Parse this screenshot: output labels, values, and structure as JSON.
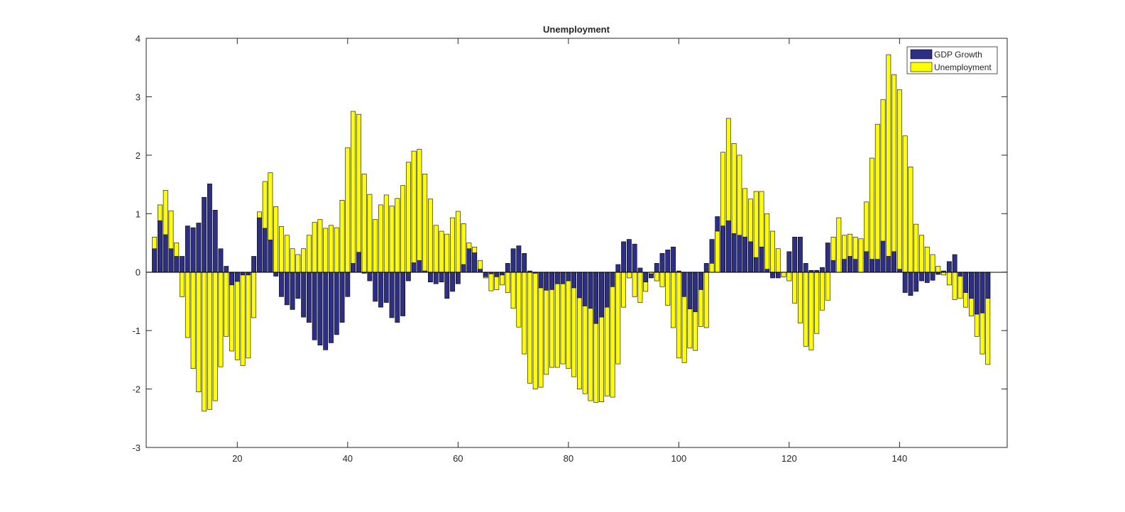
{
  "chart_data": {
    "type": "bar",
    "title": "Unemployment",
    "xlabel": "",
    "ylabel": "",
    "xlim": [
      3.5,
      159.5
    ],
    "ylim": [
      -3,
      4
    ],
    "xticks": [
      20,
      40,
      60,
      80,
      100,
      120,
      140
    ],
    "yticks": [
      -3,
      -2,
      -1,
      0,
      1,
      2,
      3,
      4
    ],
    "grid": false,
    "legend_position": "top-right",
    "x_start": 5,
    "series": [
      {
        "name": "GDP Growth",
        "color": "#2d2f86",
        "values": [
          0.4,
          0.88,
          0.64,
          0.4,
          0.27,
          0.27,
          0.79,
          0.76,
          0.84,
          1.28,
          1.51,
          1.06,
          0.4,
          0.1,
          -0.22,
          -0.16,
          -0.05,
          -0.05,
          0.27,
          0.93,
          0.75,
          0.55,
          -0.07,
          -0.42,
          -0.56,
          -0.64,
          -0.45,
          -0.77,
          -0.86,
          -1.16,
          -1.25,
          -1.33,
          -1.21,
          -1.07,
          -0.86,
          -0.42,
          0.15,
          0.34,
          -0.02,
          -0.15,
          -0.5,
          -0.6,
          -0.52,
          -0.78,
          -0.86,
          -0.75,
          -0.15,
          0.16,
          0.2,
          0.02,
          -0.17,
          -0.2,
          -0.17,
          -0.45,
          -0.33,
          -0.2,
          0.13,
          0.4,
          0.33,
          0.05,
          -0.08,
          -0.03,
          -0.08,
          -0.05,
          0.15,
          0.4,
          0.45,
          0.32,
          0.02,
          -0.02,
          -0.27,
          -0.31,
          -0.3,
          -0.2,
          -0.2,
          -0.15,
          -0.27,
          -0.44,
          -0.58,
          -0.62,
          -0.88,
          -0.77,
          -0.6,
          -0.25,
          0.13,
          0.52,
          0.56,
          0.48,
          0.07,
          -0.17,
          -0.1,
          0.15,
          0.32,
          0.38,
          0.43,
          0.02,
          -0.42,
          -0.63,
          -0.68,
          -0.3,
          0.15,
          0.56,
          0.95,
          0.79,
          0.88,
          0.66,
          0.63,
          0.6,
          0.52,
          0.25,
          0.43,
          0.05,
          -0.1,
          -0.1,
          -0.08,
          0.35,
          0.6,
          0.6,
          0.15,
          0.03,
          0.03,
          0.08,
          0.5,
          0.2,
          0.0,
          0.22,
          0.27,
          0.22,
          0.0,
          0.35,
          0.22,
          0.22,
          0.53,
          0.27,
          0.35,
          0.05,
          -0.35,
          -0.4,
          -0.33,
          -0.15,
          -0.18,
          -0.14,
          -0.04,
          0.02,
          0.18,
          0.3,
          -0.07,
          -0.35,
          -0.45,
          -0.72,
          -0.7,
          -0.45
        ]
      },
      {
        "name": "Unemployment",
        "color": "#ffff00",
        "values": [
          0.6,
          1.15,
          1.4,
          1.05,
          0.5,
          -0.42,
          -1.12,
          -1.65,
          -2.05,
          -2.38,
          -2.35,
          -2.2,
          -1.62,
          -1.1,
          -1.35,
          -1.5,
          -1.6,
          -1.47,
          -0.78,
          1.03,
          1.55,
          1.7,
          1.12,
          0.78,
          0.63,
          0.4,
          0.3,
          0.4,
          0.63,
          0.85,
          0.9,
          0.75,
          0.8,
          0.76,
          1.23,
          2.13,
          2.75,
          2.7,
          1.68,
          1.33,
          0.9,
          1.15,
          1.32,
          1.13,
          1.26,
          1.48,
          1.88,
          2.07,
          2.1,
          1.68,
          1.25,
          0.8,
          0.7,
          0.65,
          0.93,
          1.04,
          0.83,
          0.5,
          0.43,
          0.2,
          -0.1,
          -0.32,
          -0.3,
          -0.22,
          -0.35,
          -0.62,
          -0.94,
          -1.4,
          -1.9,
          -2.0,
          -1.97,
          -1.75,
          -1.63,
          -1.63,
          -1.57,
          -1.65,
          -1.79,
          -2.0,
          -2.08,
          -2.2,
          -2.23,
          -2.22,
          -2.12,
          -2.14,
          -1.57,
          -0.6,
          -0.1,
          -0.42,
          -0.52,
          -0.33,
          -0.03,
          -0.15,
          -0.25,
          -0.57,
          -0.95,
          -1.47,
          -1.55,
          -1.3,
          -1.34,
          -0.93,
          -0.95,
          0.15,
          0.7,
          2.05,
          2.63,
          2.2,
          2.0,
          1.43,
          1.25,
          1.38,
          1.38,
          1.0,
          0.7,
          0.4,
          -0.08,
          -0.15,
          -0.53,
          -0.87,
          -1.27,
          -1.33,
          -1.05,
          -0.65,
          -0.48,
          0.6,
          0.93,
          0.63,
          0.65,
          0.6,
          0.57,
          1.2,
          1.95,
          2.53,
          2.95,
          3.72,
          3.38,
          3.12,
          2.33,
          1.8,
          0.82,
          0.63,
          0.43,
          0.3,
          0.1,
          -0.05,
          -0.22,
          -0.47,
          -0.45,
          -0.6,
          -0.75,
          -1.1,
          -1.4,
          -1.58
        ]
      }
    ]
  },
  "legend": {
    "items": [
      {
        "label": "GDP Growth",
        "color": "#2d2f86"
      },
      {
        "label": "Unemployment",
        "color": "#ffff00"
      }
    ]
  }
}
